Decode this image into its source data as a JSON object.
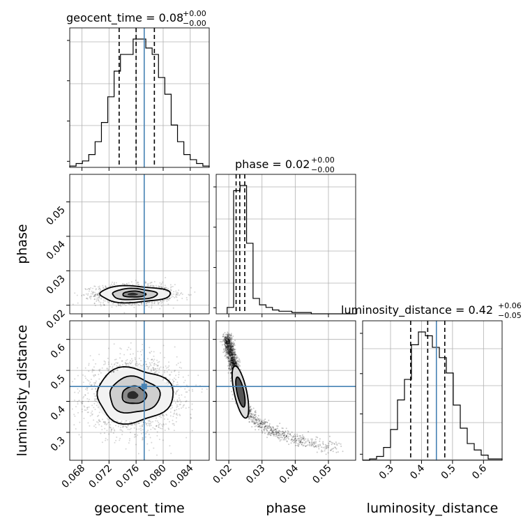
{
  "chart_data": {
    "type": "scatter",
    "chart_kind": "corner plot",
    "parameters": [
      "geocent_time",
      "phase",
      "luminosity_distance"
    ],
    "truth_color": "#4682b4",
    "grid": true,
    "panels": {
      "geocent_time": {
        "title_main": "geocent_time = 0.08",
        "title_plus": "+0.00",
        "title_minus": "−0.00",
        "median": 0.076,
        "quantile_16": 0.0735,
        "quantile_84": 0.0787,
        "truth": 0.0772,
        "hist_range": [
          0.0662,
          0.0868
        ],
        "hist_counts": [
          1,
          3,
          5,
          10,
          20,
          35,
          55,
          75,
          88,
          88,
          100,
          100,
          93,
          88,
          70,
          57,
          33,
          20,
          10,
          6,
          3,
          1
        ]
      },
      "phase": {
        "title_main": "phase = 0.02",
        "title_plus": "+0.00",
        "title_minus": "−0.00",
        "median": 0.0233,
        "quantile_16": 0.0222,
        "quantile_84": 0.0248,
        "hist_range": [
          0.0195,
          0.0585
        ],
        "hist_counts": [
          5,
          96,
          100,
          55,
          12,
          7,
          5,
          3,
          2,
          2,
          1,
          1,
          1,
          0,
          0,
          0,
          0,
          0,
          0,
          0
        ]
      },
      "luminosity_distance": {
        "title_main": "luminosity_distance = 0.42",
        "title_plus": "+0.06",
        "title_minus": "−0.05",
        "median": 0.42,
        "quantile_16": 0.365,
        "quantile_84": 0.475,
        "truth": 0.448,
        "hist_range": [
          0.21,
          0.66
        ],
        "hist_counts": [
          0,
          1,
          3,
          10,
          24,
          47,
          63,
          90,
          100,
          97,
          88,
          80,
          68,
          43,
          25,
          13,
          8,
          4,
          1,
          1
        ]
      }
    },
    "x_axes": {
      "geocent_time": {
        "label": "geocent_time",
        "range": [
          0.0662,
          0.0868
        ],
        "ticks": [
          0.068,
          0.072,
          0.076,
          0.08,
          0.084
        ],
        "tick_labels": [
          "0.068",
          "0.072",
          "0.076",
          "0.080",
          "0.084"
        ]
      },
      "phase": {
        "label": "phase",
        "range": [
          0.0162,
          0.0582
        ],
        "ticks": [
          0.02,
          0.03,
          0.04,
          0.05
        ],
        "tick_labels": [
          "0.02",
          "0.03",
          "0.04",
          "0.05"
        ]
      },
      "luminosity_distance": {
        "label": "luminosity_distance",
        "range": [
          0.21,
          0.66
        ],
        "ticks": [
          0.3,
          0.4,
          0.5,
          0.6
        ],
        "tick_labels": [
          "0.3",
          "0.4",
          "0.5",
          "0.6"
        ]
      }
    },
    "y_axes": {
      "phase": {
        "label": "phase",
        "range": [
          0.0175,
          0.058
        ],
        "ticks": [
          0.02,
          0.03,
          0.04,
          0.05
        ],
        "tick_labels": [
          "0.02",
          "0.03",
          "0.04",
          "0.05"
        ]
      },
      "luminosity_distance": {
        "label": "luminosity_distance",
        "range": [
          0.21,
          0.66
        ],
        "ticks": [
          0.3,
          0.4,
          0.5,
          0.6
        ],
        "tick_labels": [
          "0.3",
          "0.4",
          "0.5",
          "0.6"
        ]
      }
    },
    "posterior_2d": {
      "geocent_time_vs_phase": {
        "center": [
          0.0757,
          0.0232
        ],
        "spread": [
          0.0028,
          0.0014
        ],
        "correlation": 0.0,
        "contour_levels": [
          [
            0.0017,
            0.00085
          ],
          [
            0.0033,
            0.0016
          ],
          [
            0.0052,
            0.0024
          ]
        ]
      },
      "geocent_time_vs_luminosity_distance": {
        "center": [
          0.0757,
          0.42
        ],
        "spread": [
          0.0033,
          0.055
        ],
        "correlation": 0.0,
        "contour_levels": [
          [
            0.0018,
            0.028
          ],
          [
            0.0037,
            0.058
          ],
          [
            0.0056,
            0.088
          ]
        ]
      },
      "phase_vs_luminosity_distance": {
        "description_shape": "curved banana",
        "curve_points": [
          [
            0.0195,
            0.6
          ],
          [
            0.0215,
            0.52
          ],
          [
            0.0225,
            0.46
          ],
          [
            0.0235,
            0.42
          ],
          [
            0.025,
            0.38
          ],
          [
            0.028,
            0.34
          ],
          [
            0.032,
            0.31
          ],
          [
            0.038,
            0.285
          ],
          [
            0.045,
            0.265
          ],
          [
            0.053,
            0.25
          ]
        ],
        "core": [
          0.0235,
          0.43
        ]
      }
    },
    "truth_point": [
      0.0772,
      0.448
    ]
  }
}
